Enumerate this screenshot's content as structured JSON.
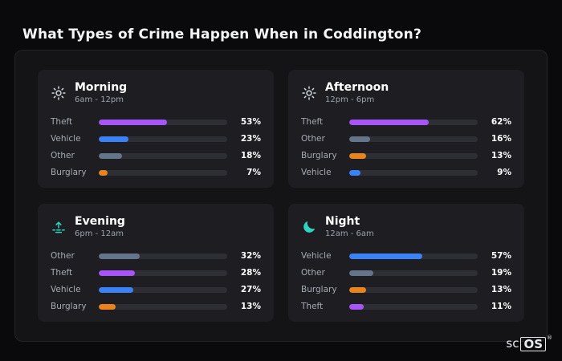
{
  "page": {
    "title": "What Types of Crime Happen When in Coddington?"
  },
  "brand": {
    "plain": "sc",
    "boxed": "OS",
    "registered": "®"
  },
  "cards": [
    {
      "icon": "sun-icon",
      "icon_color": "gray",
      "title": "Morning",
      "subtitle": "6am - 12pm",
      "rows": [
        {
          "label": "Theft",
          "percent": "53%",
          "value": 53,
          "color": "#a855f7"
        },
        {
          "label": "Vehicle",
          "percent": "23%",
          "value": 23,
          "color": "#3b82f6"
        },
        {
          "label": "Other",
          "percent": "18%",
          "value": 18,
          "color": "#64748b"
        },
        {
          "label": "Burglary",
          "percent": "7%",
          "value": 7,
          "color": "#e8831d"
        }
      ]
    },
    {
      "icon": "sun-icon",
      "icon_color": "gray",
      "title": "Afternoon",
      "subtitle": "12pm - 6pm",
      "rows": [
        {
          "label": "Theft",
          "percent": "62%",
          "value": 62,
          "color": "#a855f7"
        },
        {
          "label": "Other",
          "percent": "16%",
          "value": 16,
          "color": "#64748b"
        },
        {
          "label": "Burglary",
          "percent": "13%",
          "value": 13,
          "color": "#e8831d"
        },
        {
          "label": "Vehicle",
          "percent": "9%",
          "value": 9,
          "color": "#3b82f6"
        }
      ]
    },
    {
      "icon": "sunrise-icon",
      "icon_color": "teal",
      "title": "Evening",
      "subtitle": "6pm - 12am",
      "rows": [
        {
          "label": "Other",
          "percent": "32%",
          "value": 32,
          "color": "#64748b"
        },
        {
          "label": "Theft",
          "percent": "28%",
          "value": 28,
          "color": "#a855f7"
        },
        {
          "label": "Vehicle",
          "percent": "27%",
          "value": 27,
          "color": "#3b82f6"
        },
        {
          "label": "Burglary",
          "percent": "13%",
          "value": 13,
          "color": "#e8831d"
        }
      ]
    },
    {
      "icon": "moon-icon",
      "icon_color": "teal",
      "title": "Night",
      "subtitle": "12am - 6am",
      "rows": [
        {
          "label": "Vehicle",
          "percent": "57%",
          "value": 57,
          "color": "#3b82f6"
        },
        {
          "label": "Other",
          "percent": "19%",
          "value": 19,
          "color": "#64748b"
        },
        {
          "label": "Burglary",
          "percent": "13%",
          "value": 13,
          "color": "#e8831d"
        },
        {
          "label": "Theft",
          "percent": "11%",
          "value": 11,
          "color": "#a855f7"
        }
      ]
    }
  ],
  "chart_data": [
    {
      "type": "bar",
      "orientation": "horizontal",
      "title": "Morning",
      "subtitle": "6am - 12pm",
      "categories": [
        "Theft",
        "Vehicle",
        "Other",
        "Burglary"
      ],
      "values": [
        53,
        23,
        18,
        7
      ],
      "colors": [
        "#a855f7",
        "#3b82f6",
        "#64748b",
        "#e8831d"
      ],
      "unit": "%",
      "xlim": [
        0,
        100
      ],
      "grid": false,
      "legend": false
    },
    {
      "type": "bar",
      "orientation": "horizontal",
      "title": "Afternoon",
      "subtitle": "12pm - 6pm",
      "categories": [
        "Theft",
        "Other",
        "Burglary",
        "Vehicle"
      ],
      "values": [
        62,
        16,
        13,
        9
      ],
      "colors": [
        "#a855f7",
        "#64748b",
        "#e8831d",
        "#3b82f6"
      ],
      "unit": "%",
      "xlim": [
        0,
        100
      ],
      "grid": false,
      "legend": false
    },
    {
      "type": "bar",
      "orientation": "horizontal",
      "title": "Evening",
      "subtitle": "6pm - 12am",
      "categories": [
        "Other",
        "Theft",
        "Vehicle",
        "Burglary"
      ],
      "values": [
        32,
        28,
        27,
        13
      ],
      "colors": [
        "#64748b",
        "#a855f7",
        "#3b82f6",
        "#e8831d"
      ],
      "unit": "%",
      "xlim": [
        0,
        100
      ],
      "grid": false,
      "legend": false
    },
    {
      "type": "bar",
      "orientation": "horizontal",
      "title": "Night",
      "subtitle": "12am - 6am",
      "categories": [
        "Vehicle",
        "Other",
        "Burglary",
        "Theft"
      ],
      "values": [
        57,
        19,
        13,
        11
      ],
      "colors": [
        "#3b82f6",
        "#64748b",
        "#e8831d",
        "#a855f7"
      ],
      "unit": "%",
      "xlim": [
        0,
        100
      ],
      "grid": false,
      "legend": false
    }
  ]
}
